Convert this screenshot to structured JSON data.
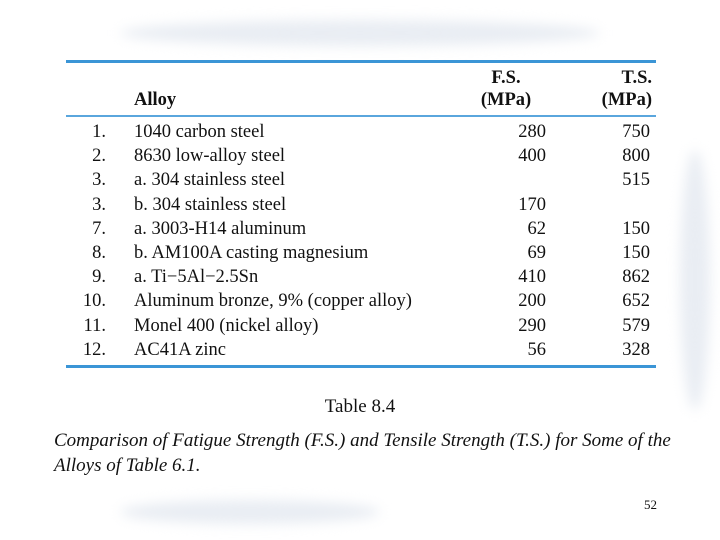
{
  "table": {
    "headers": {
      "number": "",
      "alloy": "Alloy",
      "fs": [
        "F.S.",
        "(MPa)"
      ],
      "ts": [
        "T.S.",
        "(MPa)"
      ]
    },
    "rows": [
      {
        "number": "1.",
        "alloy": "1040 carbon steel",
        "fs": "280",
        "ts": "750"
      },
      {
        "number": "2.",
        "alloy": "8630 low-alloy steel",
        "fs": "400",
        "ts": "800"
      },
      {
        "number": "3.",
        "alloy": "a. 304 stainless steel",
        "fs": "",
        "ts": "515"
      },
      {
        "number": "3.",
        "alloy": "b. 304 stainless steel",
        "fs": "170",
        "ts": ""
      },
      {
        "number": "7.",
        "alloy": "a. 3003-H14 aluminum",
        "fs": "62",
        "ts": "150"
      },
      {
        "number": "8.",
        "alloy": "b. AM100A casting magnesium",
        "fs": "69",
        "ts": "150"
      },
      {
        "number": "9.",
        "alloy": "a. Ti−5Al−2.5Sn",
        "fs": "410",
        "ts": "862"
      },
      {
        "number": "10.",
        "alloy": "Aluminum bronze, 9% (copper alloy)",
        "fs": "200",
        "ts": "652"
      },
      {
        "number": "11.",
        "alloy": "Monel 400 (nickel alloy)",
        "fs": "290",
        "ts": "579"
      },
      {
        "number": "12.",
        "alloy": "AC41A zinc",
        "fs": "56",
        "ts": "328"
      }
    ]
  },
  "table_label": "Table 8.4",
  "caption": "Comparison of Fatigue Strength (F.S.) and Tensile Strength (T.S.) for Some of the Alloys of Table 6.1.",
  "page_number": "52"
}
